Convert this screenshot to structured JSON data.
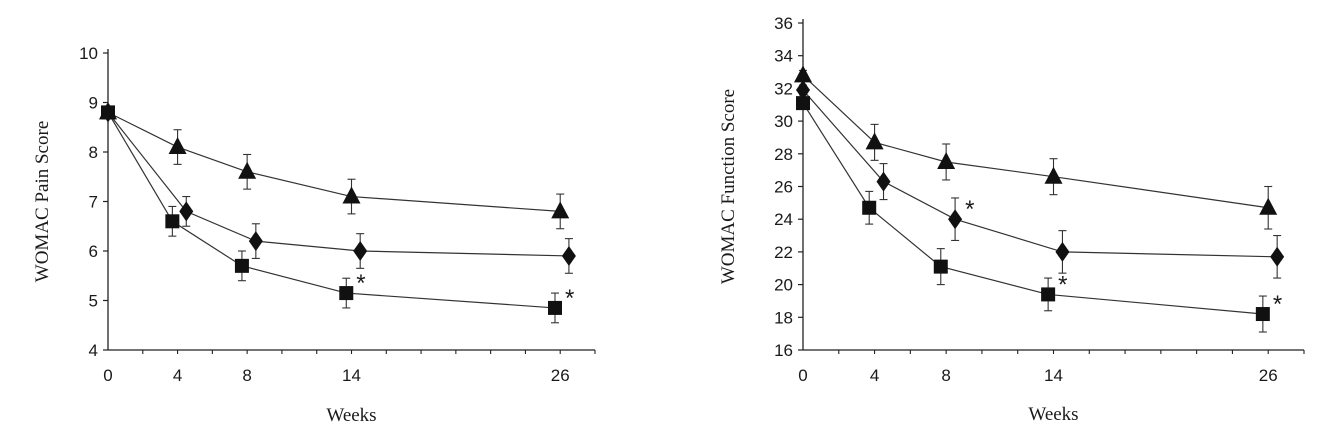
{
  "chart_data": [
    {
      "type": "line",
      "xlabel": "Weeks",
      "ylabel": "WOMAC Pain Score",
      "x": [
        0,
        4,
        8,
        14,
        26
      ],
      "xticks": [
        "0",
        "4",
        "8",
        "14",
        "26"
      ],
      "xlim": [
        0,
        28
      ],
      "ylim": [
        4,
        10
      ],
      "yticks": [
        "4",
        "5",
        "6",
        "7",
        "8",
        "9",
        "10"
      ],
      "grid": false,
      "series": [
        {
          "marker": "triangle",
          "values": [
            8.8,
            8.1,
            7.6,
            7.1,
            6.8
          ],
          "errors": [
            0.1,
            0.35,
            0.35,
            0.35,
            0.35
          ],
          "significant": [
            false,
            false,
            false,
            false,
            false
          ]
        },
        {
          "marker": "diamond",
          "values": [
            8.8,
            6.8,
            6.2,
            6.0,
            5.9
          ],
          "errors": [
            0.1,
            0.3,
            0.35,
            0.35,
            0.35
          ],
          "significant": [
            false,
            false,
            false,
            false,
            false
          ]
        },
        {
          "marker": "square",
          "values": [
            8.8,
            6.6,
            5.7,
            5.15,
            4.85
          ],
          "errors": [
            0.1,
            0.3,
            0.3,
            0.3,
            0.3
          ],
          "significant": [
            false,
            false,
            false,
            true,
            true
          ]
        }
      ],
      "annotation": "*"
    },
    {
      "type": "line",
      "xlabel": "Weeks",
      "ylabel": "WOMAC Function Score",
      "x": [
        0,
        4,
        8,
        14,
        26
      ],
      "xticks": [
        "0",
        "4",
        "8",
        "14",
        "26"
      ],
      "xlim": [
        0,
        28
      ],
      "ylim": [
        16,
        36
      ],
      "yticks": [
        "16",
        "18",
        "20",
        "22",
        "24",
        "26",
        "28",
        "30",
        "32",
        "34",
        "36"
      ],
      "grid": false,
      "series": [
        {
          "marker": "triangle",
          "values": [
            32.8,
            28.7,
            27.5,
            26.6,
            24.7
          ],
          "errors": [
            0.3,
            1.1,
            1.1,
            1.1,
            1.3
          ],
          "significant": [
            false,
            false,
            false,
            false,
            false
          ]
        },
        {
          "marker": "diamond",
          "values": [
            31.9,
            26.3,
            24.0,
            22.0,
            21.7
          ],
          "errors": [
            0.3,
            1.1,
            1.3,
            1.3,
            1.3
          ],
          "significant": [
            false,
            false,
            true,
            false,
            false
          ]
        },
        {
          "marker": "square",
          "values": [
            31.1,
            24.7,
            21.1,
            19.4,
            18.2
          ],
          "errors": [
            0.3,
            1.0,
            1.1,
            1.0,
            1.1
          ],
          "significant": [
            false,
            false,
            false,
            true,
            true
          ]
        }
      ],
      "annotation": "*"
    }
  ]
}
